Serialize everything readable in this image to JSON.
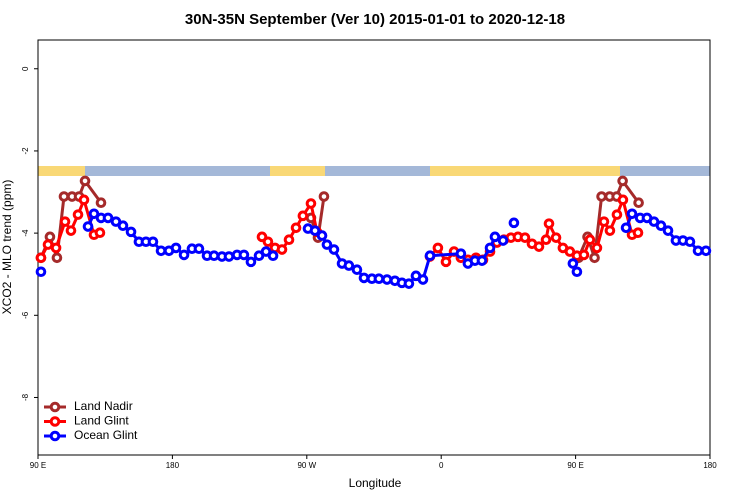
{
  "chart_data": {
    "type": "line",
    "title": "30N-35N September (Ver 10)   2015-01-01 to 2020-12-18",
    "x_label": "Longitude",
    "y_label": "XCO2 - MLO trend (ppm)",
    "xlim": [
      90,
      540
    ],
    "ylim": [
      -9.4,
      0.7
    ],
    "xticks": [
      {
        "value": 90,
        "label": "90 E"
      },
      180,
      {
        "value": 270,
        "label": "90 W"
      },
      {
        "value": 360,
        "label": "0"
      },
      {
        "value": 450,
        "label": "90 E"
      },
      {
        "value": 540,
        "label": "180"
      }
    ],
    "yticks": [
      0,
      -2,
      -4,
      -6,
      -8
    ],
    "legend": "bottom left",
    "series": [
      {
        "name": "Land Nadir",
        "color": "#a52a2a",
        "x": [
          92.0,
          98.0,
          102.7,
          107.4,
          112.8,
          117.5,
          121.5,
          132.2,
          null,
          272.8,
          277.5,
          281.5,
          null,
          452.0,
          458.0,
          462.7,
          467.4,
          472.8,
          477.5,
          481.5,
          492.2
        ],
        "values": [
          -4.6,
          -4.09,
          -4.6,
          -3.11,
          -3.11,
          -3.11,
          -2.73,
          -3.26,
          null,
          -3.63,
          -4.11,
          -3.11,
          null,
          -4.6,
          -4.09,
          -4.6,
          -3.11,
          -3.11,
          -3.11,
          -2.73,
          -3.26
        ]
      },
      {
        "name": "Land Glint",
        "color": "#ff0000",
        "x": [
          92.0,
          96.7,
          102.1,
          108.1,
          112.1,
          116.8,
          120.8,
          127.5,
          131.5,
          null,
          240.0,
          244.0,
          248.7,
          253.4,
          258.1,
          262.8,
          267.4,
          272.8,
          276.8,
          null,
          352.5,
          357.8,
          363.2,
          368.6,
          373.2,
          377.9,
          383.3,
          388.0,
          392.7,
          397.3,
          402.0,
          406.7,
          411.4,
          416.1,
          420.8,
          425.5,
          430.2,
          432.2,
          436.9,
          441.5,
          446.2,
          450.9,
          455.6,
          459.6,
          464.3,
          469.0,
          473.0,
          477.7,
          481.7,
          487.8,
          491.8
        ],
        "values": [
          -4.6,
          -4.28,
          -4.36,
          -3.72,
          -3.94,
          -3.55,
          -3.19,
          -4.04,
          -3.99,
          null,
          -4.09,
          -4.21,
          -4.36,
          -4.4,
          -4.16,
          -3.87,
          -3.58,
          -3.28,
          -3.97,
          null,
          -4.57,
          -4.36,
          -4.7,
          -4.45,
          -4.6,
          -4.65,
          -4.6,
          -4.65,
          -4.45,
          -4.23,
          -4.16,
          -4.11,
          -4.09,
          -4.11,
          -4.26,
          -4.33,
          -4.16,
          -3.77,
          -4.11,
          -4.36,
          -4.45,
          -4.55,
          -4.53,
          -4.16,
          -4.36,
          -3.72,
          -3.94,
          -3.55,
          -3.19,
          -4.04,
          -3.99
        ]
      },
      {
        "name": "Ocean Glint",
        "color": "#0000ff",
        "x": [
          92.0,
          null,
          123.5,
          127.5,
          132.2,
          136.9,
          142.2,
          146.9,
          152.3,
          157.6,
          162.3,
          167.0,
          172.4,
          177.7,
          182.4,
          187.8,
          193.1,
          197.8,
          203.2,
          207.9,
          213.2,
          217.9,
          223.3,
          227.9,
          232.6,
          238.0,
          242.7,
          247.4,
          null,
          270.8,
          275.5,
          280.2,
          283.5,
          288.2,
          293.6,
          298.2,
          303.6,
          308.3,
          313.6,
          318.3,
          323.7,
          329.0,
          333.7,
          338.4,
          343.1,
          347.8,
          352.5,
          373.2,
          377.9,
          382.6,
          387.3,
          392.7,
          396.0,
          401.4,
          null,
          408.7,
          null,
          448.2,
          450.9,
          null,
          483.8,
          487.8,
          493.2,
          497.8,
          502.5,
          507.2,
          511.9,
          517.2,
          521.9,
          526.6,
          532.0,
          537.3
        ],
        "values": [
          -4.94,
          null,
          -3.84,
          -3.53,
          -3.63,
          -3.63,
          -3.72,
          -3.82,
          -3.97,
          -4.21,
          -4.21,
          -4.21,
          -4.43,
          -4.43,
          -4.36,
          -4.53,
          -4.38,
          -4.38,
          -4.55,
          -4.55,
          -4.57,
          -4.57,
          -4.53,
          -4.53,
          -4.7,
          -4.55,
          -4.45,
          -4.55,
          null,
          -3.89,
          -3.94,
          -4.06,
          -4.28,
          -4.4,
          -4.74,
          -4.79,
          -4.89,
          -5.09,
          -5.11,
          -5.11,
          -5.13,
          -5.16,
          -5.21,
          -5.23,
          -5.04,
          -5.13,
          -4.55,
          -4.5,
          -4.74,
          -4.67,
          -4.67,
          -4.36,
          -4.09,
          -4.18,
          null,
          -3.75,
          null,
          -4.74,
          -4.94,
          null,
          -3.87,
          -3.53,
          -3.63,
          -3.63,
          -3.72,
          -3.82,
          -3.94,
          -4.18,
          -4.18,
          -4.21,
          -4.43,
          -4.43
        ]
      }
    ]
  }
}
